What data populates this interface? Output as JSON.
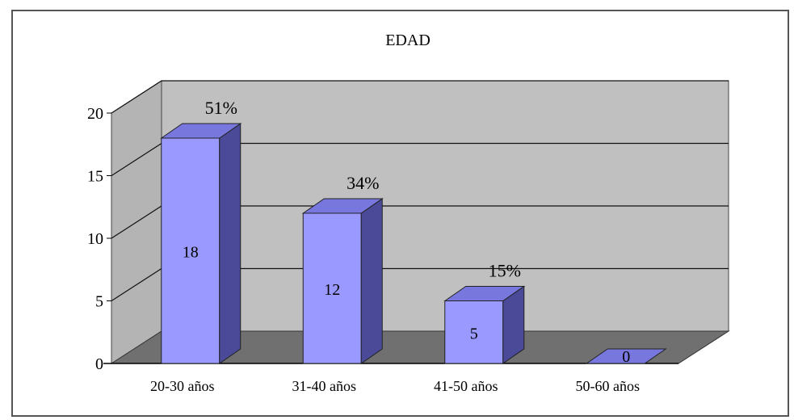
{
  "chart_data": {
    "type": "bar",
    "title": "EDAD",
    "xlabel": "",
    "ylabel": "",
    "categories": [
      "20-30 años",
      "31-40 años",
      "41-50 años",
      "50-60 años"
    ],
    "values": [
      18,
      12,
      5,
      0
    ],
    "percent_labels": [
      "51%",
      "34%",
      "15%",
      ""
    ],
    "y_ticks": [
      "0",
      "5",
      "10",
      "15",
      "20"
    ],
    "ylim": [
      0,
      20
    ],
    "grid": true,
    "legend": "none",
    "colors": {
      "bar_front": "#9999ff",
      "bar_top": "#7777dd",
      "bar_side": "#4a4a99",
      "wall": "#c0c0c0",
      "floor": "#707070",
      "grid": "#111111"
    }
  }
}
